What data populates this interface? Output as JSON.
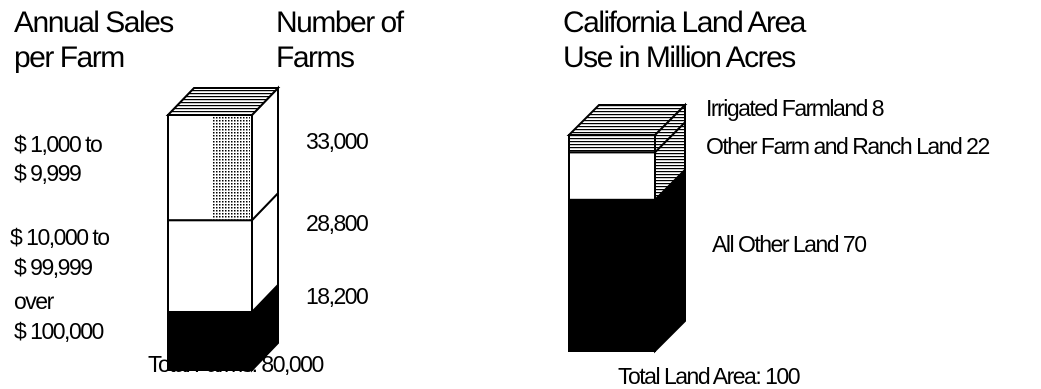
{
  "charts": {
    "farms": {
      "heading_left_1": "Annual Sales",
      "heading_left_2": "per Farm",
      "heading_right_1": "Number of",
      "heading_right_2": "Farms",
      "total": "Total Farms: 80,000"
    },
    "land": {
      "heading_1": "California Land Area",
      "heading_2": "Use in Million Acres",
      "total": "Total Land Area: 100"
    }
  },
  "chart_data": [
    {
      "type": "bar",
      "title": "Annual Sales per Farm / Number of Farms",
      "categories": [
        "$ 1,000 to $ 9,999",
        "$ 10,000 to $ 99,999",
        "over $ 100,000"
      ],
      "category_lines": [
        [
          "$ 1,000 to",
          "$ 9,999"
        ],
        [
          "$ 10,000 to",
          "$ 99,999"
        ],
        [
          "over",
          "$ 100,000"
        ]
      ],
      "values": [
        33000,
        28800,
        18200
      ],
      "value_labels": [
        "33,000",
        "28,800",
        "18,200"
      ],
      "total": 80000,
      "stacked": true
    },
    {
      "type": "bar",
      "title": "California Land Area Use in Million Acres",
      "categories": [
        "Irrigated Farmland",
        "Other Farm and Ranch Land",
        "All Other Land"
      ],
      "values": [
        8,
        22,
        70
      ],
      "labels": [
        "Irrigated Farmland 8",
        "Other Farm and Ranch Land 22",
        "All Other Land 70"
      ],
      "total": 100,
      "stacked": true
    }
  ]
}
